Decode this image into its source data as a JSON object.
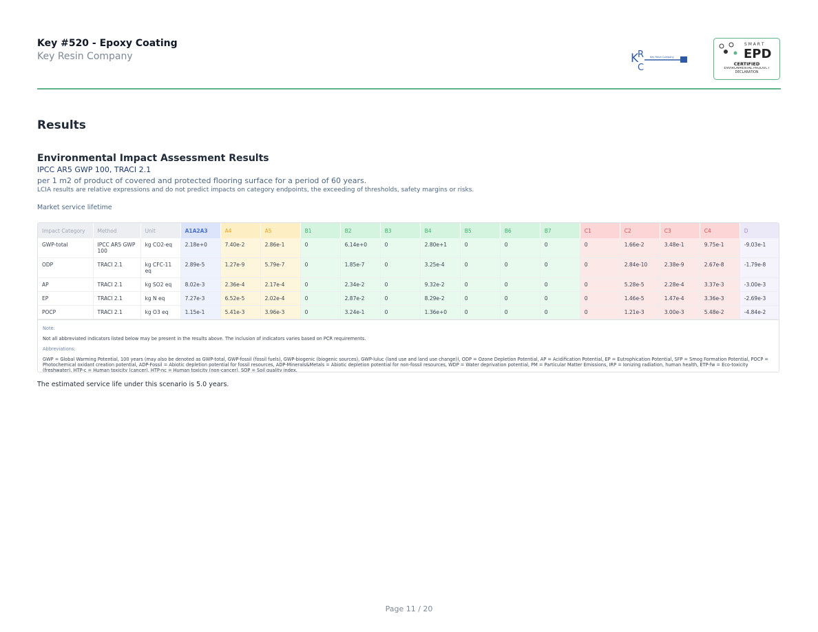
{
  "header": {
    "title": "Key #520 - Epoxy Coating",
    "company": "Key Resin Company",
    "logo": {
      "monogram": [
        "K",
        "R",
        "C"
      ],
      "text": "Key Resin Company"
    },
    "badge": {
      "smart": "S M A R T",
      "epd": "EPD",
      "certified": "CERTIFIED",
      "declaration": "ENVIRONMENTAL PRODUCT DECLARATION"
    }
  },
  "section_title": "Results",
  "subsection": {
    "title": "Environmental Impact Assessment Results",
    "methods": "IPCC AR5 GWP 100, TRACI 2.1",
    "functional_unit": "per 1 m2 of product of covered and protected flooring surface for a period of 60 years.",
    "disclaimer": "LCIA results are relative expressions and do not predict impacts on category endpoints, the exceeding of thresholds, safety margins or risks."
  },
  "scenario": "Market service lifetime",
  "table": {
    "columns": [
      "Impact Category",
      "Method",
      "Unit",
      "A1A2A3",
      "A4",
      "A5",
      "B1",
      "B2",
      "B3",
      "B4",
      "B5",
      "B6",
      "B7",
      "C1",
      "C2",
      "C3",
      "C4",
      "D"
    ],
    "rows": [
      [
        "GWP-total",
        "IPCC AR5 GWP 100",
        "kg CO2-eq",
        "2.18e+0",
        "7.40e-2",
        "2.86e-1",
        "0",
        "6.14e+0",
        "0",
        "2.80e+1",
        "0",
        "0",
        "0",
        "0",
        "1.66e-2",
        "3.48e-1",
        "9.75e-1",
        "-9.03e-1"
      ],
      [
        "ODP",
        "TRACI 2.1",
        "kg CFC-11 eq",
        "2.89e-5",
        "1.27e-9",
        "5.79e-7",
        "0",
        "1.85e-7",
        "0",
        "3.25e-4",
        "0",
        "0",
        "0",
        "0",
        "2.84e-10",
        "2.38e-9",
        "2.67e-8",
        "-1.79e-8"
      ],
      [
        "AP",
        "TRACI 2.1",
        "kg SO2 eq",
        "8.02e-3",
        "2.36e-4",
        "2.17e-4",
        "0",
        "2.34e-2",
        "0",
        "9.32e-2",
        "0",
        "0",
        "0",
        "0",
        "5.28e-5",
        "2.28e-4",
        "3.37e-3",
        "-3.00e-3"
      ],
      [
        "EP",
        "TRACI 2.1",
        "kg N eq",
        "7.27e-3",
        "6.52e-5",
        "2.02e-4",
        "0",
        "2.87e-2",
        "0",
        "8.29e-2",
        "0",
        "0",
        "0",
        "0",
        "1.46e-5",
        "1.47e-4",
        "3.36e-3",
        "-2.69e-3"
      ],
      [
        "POCP",
        "TRACI 2.1",
        "kg O3 eq",
        "1.15e-1",
        "5.41e-3",
        "3.96e-3",
        "0",
        "3.24e-1",
        "0",
        "1.36e+0",
        "0",
        "0",
        "0",
        "0",
        "1.21e-3",
        "3.00e-3",
        "5.48e-2",
        "-4.84e-2"
      ]
    ]
  },
  "note_label": "Note:",
  "note": "Not all abbreviated indicators listed below may be present in the results above. The inclusion of indicators varies based on PCR requirements.",
  "abbreviations_label": "Abbreviations:",
  "abbreviations": "GWP = Global Warming Potential, 100 years (may also be denoted as GWP-total, GWP-fossil (fossil fuels), GWP-biogenic (biogenic sources), GWP-luluc (land use and land use change)), ODP = Ozone Depletion Potential, AP = Acidification Potential, EP = Eutrophication Potential, SFP = Smog Formation Potential, POCP = Photochemical oxidant creation potential, ADP-Fossil = Abiotic depletion potential for fossil resources, ADP-Minerals&Metals = Abiotic depletion potential for non-fossil resources, WDP = Water deprivation potential, PM = Particular Matter Emissions, IRP = Ionizing radiation, human health, ETP-fw = Eco-toxicity (freshwater), HTP-c = Human toxicity (cancer), HTP-nc = Human toxicity (non-cancer), SQP = Soil quality index.",
  "service_life": "The estimated service life under this scenario is 5.0 years.",
  "footer": "Page 11 / 20"
}
